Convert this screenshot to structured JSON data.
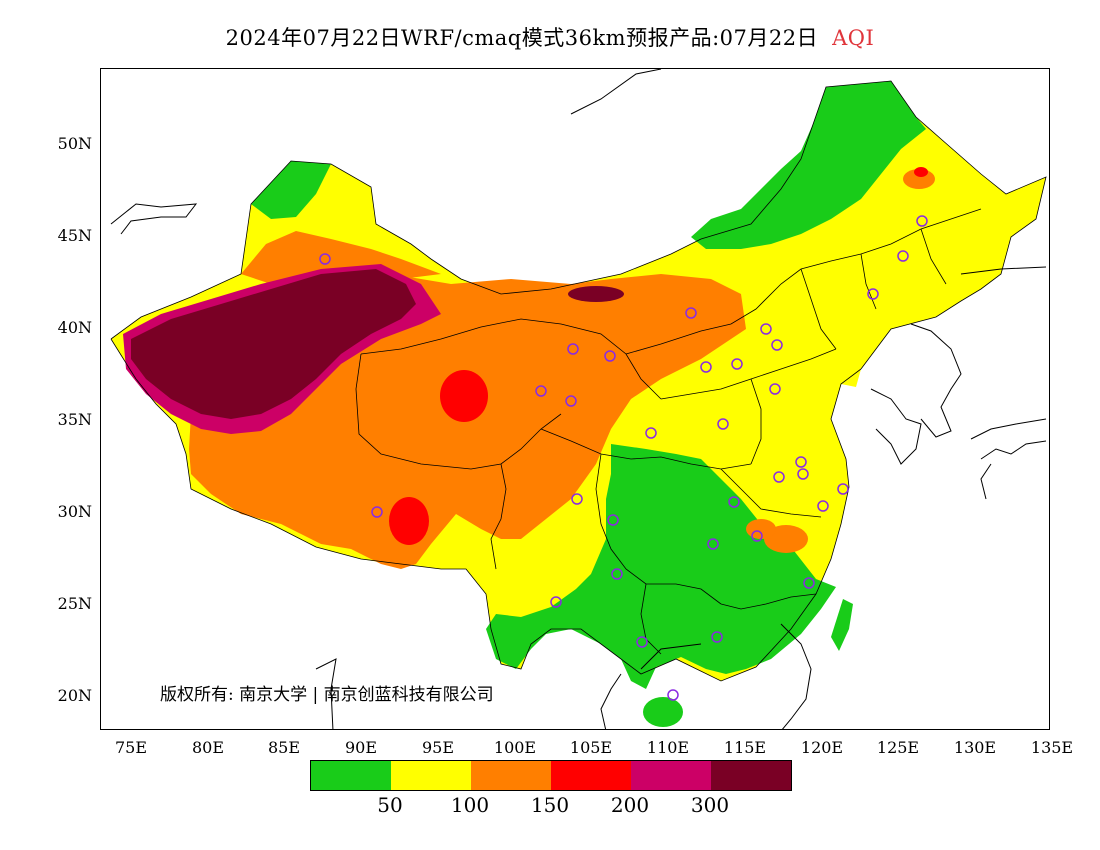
{
  "title": {
    "main": "2024年07月22日WRF/cmaq模式36km预报产品:07月22日",
    "variable": "AQI"
  },
  "axes": {
    "lat_labels": [
      "50N",
      "45N",
      "40N",
      "35N",
      "30N",
      "25N",
      "20N"
    ],
    "lon_labels": [
      "75E",
      "80E",
      "85E",
      "90E",
      "95E",
      "100E",
      "105E",
      "110E",
      "115E",
      "120E",
      "125E",
      "130E",
      "135E"
    ]
  },
  "copyright": "版权所有: 南京大学 | 南京创蓝科技有限公司",
  "legend": {
    "colors": [
      "#19cc19",
      "#ffff00",
      "#ff7f00",
      "#ff0000",
      "#cc0066",
      "#7a0025"
    ],
    "ticks": [
      "50",
      "100",
      "150",
      "200",
      "300"
    ]
  },
  "colors": {
    "good": "#19cc19",
    "moderate": "#ffff00",
    "sensitive": "#ff7f00",
    "unhealthy": "#ff0000",
    "very_unhealthy": "#cc0066",
    "hazardous": "#7a0025",
    "station_marker": "#8a2be2",
    "title_accent": "#e0353b"
  }
}
